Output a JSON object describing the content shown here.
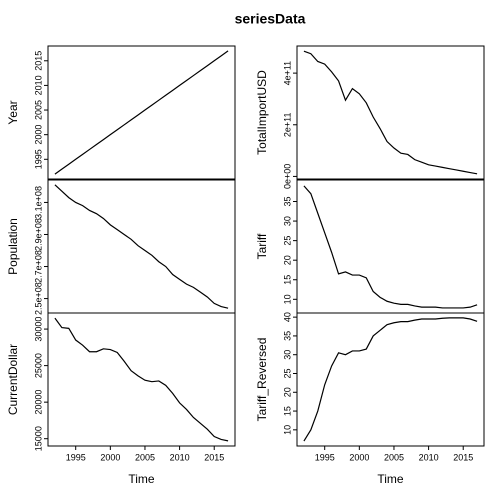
{
  "chart_data": {
    "type": "line",
    "title": "seriesData",
    "xlabel": "Time",
    "x": [
      1992,
      1993,
      1994,
      1995,
      1996,
      1997,
      1998,
      1999,
      2000,
      2001,
      2002,
      2003,
      2004,
      2005,
      2006,
      2007,
      2008,
      2009,
      2010,
      2011,
      2012,
      2013,
      2014,
      2015,
      2016,
      2017
    ],
    "xlim": [
      1991,
      2018
    ],
    "xticks": [
      1995,
      2000,
      2005,
      2010,
      2015
    ],
    "panels": [
      {
        "ylabel": "Year",
        "color": "#000000",
        "values": [
          1992,
          1993,
          1994,
          1995,
          1996,
          1997,
          1998,
          1999,
          2000,
          2001,
          2002,
          2003,
          2004,
          2005,
          2006,
          2007,
          2008,
          2009,
          2010,
          2011,
          2012,
          2013,
          2014,
          2015,
          2016,
          2017
        ],
        "ylim": [
          1991,
          2018
        ],
        "yticks": [
          1995,
          2000,
          2005,
          2010,
          2015
        ]
      },
      {
        "ylabel": "Population",
        "color": "#000000",
        "values": [
          321000000,
          317000000,
          313000000,
          310000000,
          308000000,
          305000000,
          303000000,
          300000000,
          296000000,
          293000000,
          290000000,
          287000000,
          283000000,
          280000000,
          277000000,
          273000000,
          270000000,
          265000000,
          262000000,
          259000000,
          257000000,
          254000000,
          251000000,
          247000000,
          245000000,
          244000000
        ],
        "ylim": [
          241000000,
          324000000
        ],
        "yticks": [
          {
            "value": 250000000,
            "label": "2.5e+08"
          },
          {
            "value": 270000000,
            "label": "2.7e+08"
          },
          {
            "value": 290000000,
            "label": "2.9e+08"
          },
          {
            "value": 310000000,
            "label": "3.1e+08"
          }
        ]
      },
      {
        "ylabel": "CurrentDollar",
        "color": "#000000",
        "values": [
          31500,
          30200,
          30100,
          28500,
          27800,
          26900,
          26900,
          27300,
          27200,
          26800,
          25600,
          24300,
          23600,
          23000,
          22800,
          22900,
          22300,
          21200,
          19900,
          19000,
          17900,
          17100,
          16300,
          15300,
          14900,
          14700
        ],
        "ylim": [
          14000,
          32200
        ],
        "yticks": [
          15000,
          20000,
          25000,
          30000
        ]
      },
      {
        "ylabel": "TotalImportUSD",
        "color": "#000000",
        "values": [
          485000000000,
          475000000000,
          445000000000,
          435000000000,
          405000000000,
          370000000000,
          295000000000,
          340000000000,
          320000000000,
          285000000000,
          230000000000,
          185000000000,
          135000000000,
          110000000000,
          90000000000,
          85000000000,
          65000000000,
          55000000000,
          45000000000,
          40000000000,
          35000000000,
          30000000000,
          25000000000,
          20000000000,
          15000000000,
          10000000000
        ],
        "ylim": [
          -10000000000,
          505000000000
        ],
        "yticks": [
          {
            "value": 0,
            "label": "0e+00"
          },
          {
            "value": 200000000000,
            "label": "2e+11"
          },
          {
            "value": 400000000000,
            "label": "4e+11"
          }
        ]
      },
      {
        "ylabel": "Tariff",
        "color": "#000000",
        "values": [
          39,
          37,
          32,
          27,
          22,
          16.5,
          17,
          16.2,
          16.2,
          15.5,
          12,
          10.5,
          9.5,
          9,
          8.7,
          8.7,
          8.3,
          8,
          8,
          8,
          7.8,
          7.8,
          7.8,
          7.8,
          8,
          8.6
        ],
        "ylim": [
          6.5,
          40.5
        ],
        "yticks": [
          10,
          15,
          20,
          25,
          30,
          35
        ]
      },
      {
        "ylabel": "Tariff_Reversed",
        "color": "#000000",
        "values": [
          7,
          10,
          15,
          22,
          27,
          30.5,
          30,
          31,
          31,
          31.5,
          35,
          36.5,
          38,
          38.5,
          38.8,
          38.8,
          39.2,
          39.5,
          39.5,
          39.5,
          39.7,
          39.8,
          39.8,
          39.8,
          39.5,
          38.9
        ],
        "ylim": [
          5.7,
          41.1
        ],
        "yticks": [
          10,
          15,
          20,
          25,
          30,
          35,
          40
        ]
      }
    ]
  }
}
